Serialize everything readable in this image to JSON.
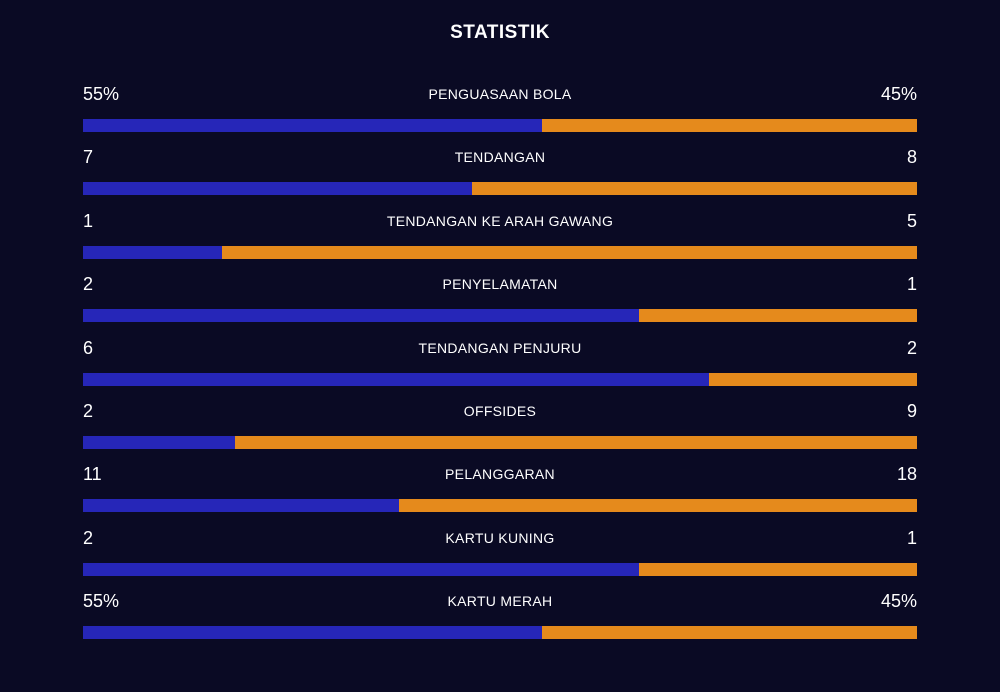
{
  "title": "STATISTIK",
  "colors": {
    "background": "#0a0a24",
    "home": "#2626b8",
    "away": "#e58a1c"
  },
  "stats": [
    {
      "label": "PENGUASAAN BOLA",
      "home": "55%",
      "away": "45%",
      "home_share": 0.55
    },
    {
      "label": "TENDANGAN",
      "home": "7",
      "away": "8",
      "home_share": 0.467
    },
    {
      "label": "TENDANGAN KE ARAH GAWANG",
      "home": "1",
      "away": "5",
      "home_share": 0.167
    },
    {
      "label": "PENYELAMATAN",
      "home": "2",
      "away": "1",
      "home_share": 0.667
    },
    {
      "label": "TENDANGAN PENJURU",
      "home": "6",
      "away": "2",
      "home_share": 0.75
    },
    {
      "label": "OFFSIDES",
      "home": "2",
      "away": "9",
      "home_share": 0.182
    },
    {
      "label": "PELANGGARAN",
      "home": "11",
      "away": "18",
      "home_share": 0.379
    },
    {
      "label": "KARTU KUNING",
      "home": "2",
      "away": "1",
      "home_share": 0.667
    },
    {
      "label": "KARTU MERAH",
      "home": "55%",
      "away": "45%",
      "home_share": 0.55
    }
  ]
}
